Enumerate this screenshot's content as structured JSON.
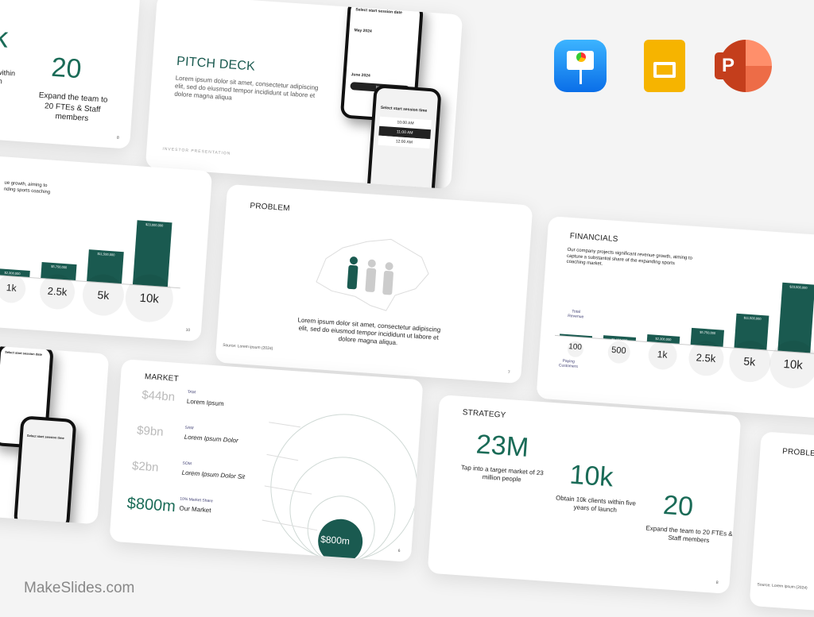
{
  "brand": "MakeSlides.com",
  "apps": [
    {
      "name": "Keynote",
      "icon": "keynote-icon"
    },
    {
      "name": "Google Slides",
      "icon": "google-slides-icon"
    },
    {
      "name": "PowerPoint",
      "icon": "powerpoint-icon"
    }
  ],
  "colors": {
    "accent": "#1a5a50",
    "accent_text": "#1a6b57"
  },
  "slide_team_partial": {
    "big_left": "k",
    "text_left": "s within\nnch",
    "big": "20",
    "text": "Expand the team to 20 FTEs & Staff members",
    "page": "8"
  },
  "pitch": {
    "title": "PITCH DECK",
    "body": "Lorem ipsum dolor sit amet, consectetur adipiscing elit, sed do eiusmod tempor incididunt ut labore et dolore magna aliqua",
    "footer": "INVESTOR PRESENTATION",
    "phone1": {
      "title": "Select start session date",
      "month1": "May 2024",
      "month2": "June 2024",
      "button": "Next"
    },
    "phone2": {
      "title": "Select start session time",
      "slots": [
        "10:00 AM",
        "11:00 AM",
        "12:00 AM"
      ]
    }
  },
  "financials_partial": {
    "body": "ue growth, aiming to\nnding sports coaching",
    "page": "10"
  },
  "problem": {
    "title": "PROBLEM",
    "body": "Lorem ipsum dolor sit amet, consectetur adipiscing elit, sed do eiusmod tempor incididunt ut labore et dolore magna aliqua.",
    "source": "Source: Lorem ipsum (2024)",
    "page": "7"
  },
  "financials": {
    "title": "FINANCIALS",
    "body": "Our company projects significant revenue growth, aiming to capture a substantial share of the expanding sports coaching market.",
    "revenue_label": "Total Revenue",
    "customers_label": "Paying Customers",
    "categories": [
      "100",
      "500",
      "1k",
      "2.5k",
      "5k",
      "10k"
    ],
    "values": [
      230000,
      1150000,
      2300000,
      5750000,
      11500000,
      23000000
    ],
    "value_labels": [
      "",
      "$1,150,000",
      "$2,300,000",
      "$5,750,000",
      "$11,500,000",
      "$23,000,000"
    ]
  },
  "market": {
    "title": "MARKET",
    "rows": [
      {
        "value": "$44bn",
        "tag": "TAM",
        "label": "Lorem Ipsum"
      },
      {
        "value": "$9bn",
        "tag": "SAM",
        "label": "Lorem Ipsum Dolor"
      },
      {
        "value": "$2bn",
        "tag": "SOM",
        "label": "Lorem Ipsum Dolor Sit"
      },
      {
        "value": "$800m",
        "tag": "10% Market Share",
        "label": "Our Market"
      }
    ],
    "bubble": "$800m",
    "page": "6"
  },
  "strategy": {
    "title": "STRATEGY",
    "items": [
      {
        "value": "23M",
        "text": "Tap into a target market of 23 million people"
      },
      {
        "value": "10k",
        "text": "Obtain 10k clients within five years of launch"
      },
      {
        "value": "20",
        "text": "Expand the team to 20 FTEs & Staff members"
      }
    ],
    "page": "8"
  },
  "problem_partial": {
    "title": "PROBLEM",
    "source": "Source: Lorem ipsum (2024)"
  }
}
